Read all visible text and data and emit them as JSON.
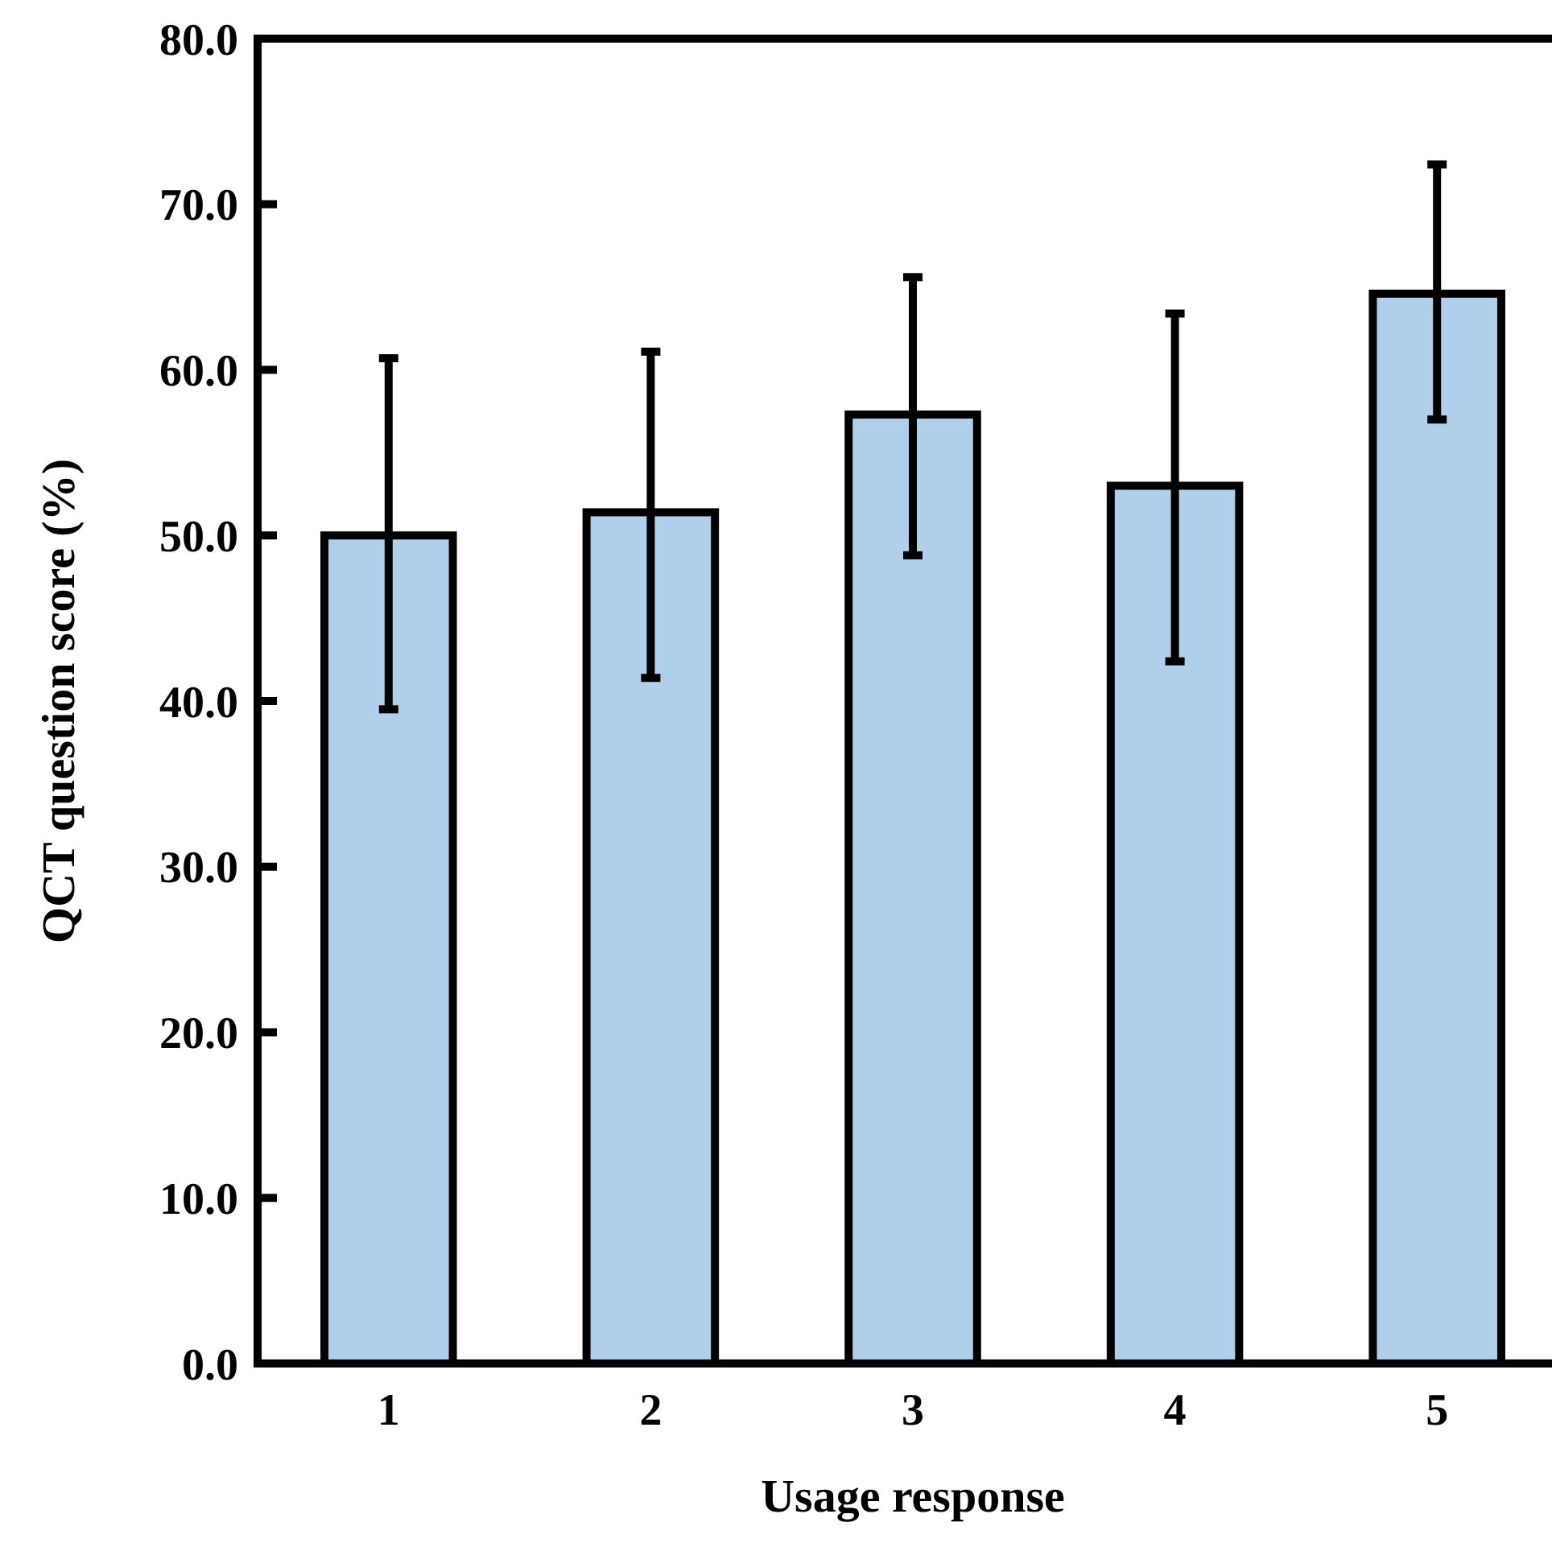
{
  "chart_data": {
    "type": "bar",
    "xlabel": "Usage response",
    "ylabel": "QCT question score (%)",
    "categories": [
      "1",
      "2",
      "3",
      "4",
      "5"
    ],
    "values": [
      50.0,
      51.4,
      57.3,
      53.0,
      64.6
    ],
    "errors": [
      [
        39.5,
        60.7
      ],
      [
        41.4,
        61.1
      ],
      [
        48.8,
        65.6
      ],
      [
        42.4,
        63.4
      ],
      [
        57.0,
        72.4
      ]
    ],
    "color": "#b0cfea",
    "ylim": [
      0,
      80
    ],
    "yticks": [
      {
        "value": 0,
        "label": "0.0"
      },
      {
        "value": 10,
        "label": "10.0"
      },
      {
        "value": 20,
        "label": "20.0"
      },
      {
        "value": 30,
        "label": "30.0"
      },
      {
        "value": 40,
        "label": "40.0"
      },
      {
        "value": 50,
        "label": "50.0"
      },
      {
        "value": 60,
        "label": "60.0"
      },
      {
        "value": 70,
        "label": "70.0"
      },
      {
        "value": 80,
        "label": "80.0"
      }
    ],
    "grid": false
  }
}
